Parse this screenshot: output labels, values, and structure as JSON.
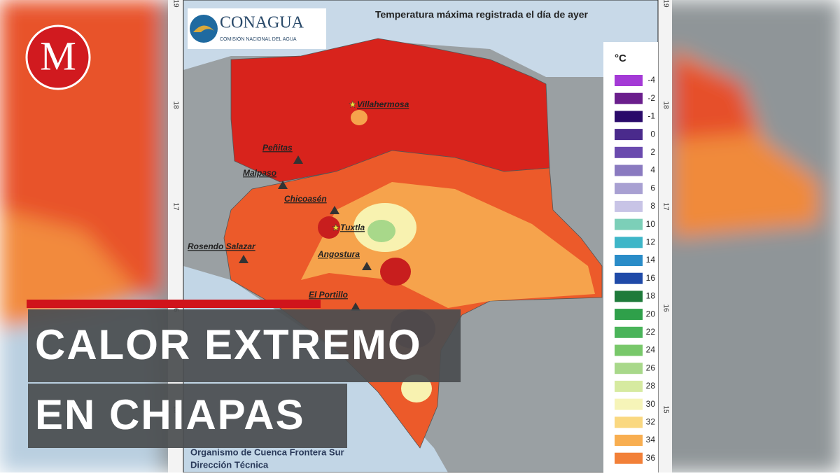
{
  "logo": {
    "letter": "M"
  },
  "map": {
    "brand": "CONAGUA",
    "brand_subtitle": "COMISIÓN NACIONAL DEL AGUA",
    "title": "Temperatura máxima registrada el día de ayer",
    "latitudes": [
      "19",
      "18",
      "17",
      "16",
      "15"
    ],
    "places": [
      "Villahermosa",
      "Peñitas",
      "Malpaso",
      "Chicoasén",
      "Tuxtla",
      "Rosendo Salazar",
      "Angostura",
      "El Portillo"
    ],
    "footer": [
      "Organismo de Cuenca Frontera Sur",
      "Dirección Técnica"
    ],
    "legend": {
      "unit": "°C",
      "items": [
        {
          "label": "-4",
          "color": "#a43ad6"
        },
        {
          "label": "-2",
          "color": "#6a1e8c"
        },
        {
          "label": "-1",
          "color": "#2a0a6a"
        },
        {
          "label": "0",
          "color": "#4a2a8c"
        },
        {
          "label": "2",
          "color": "#6a4aae"
        },
        {
          "label": "4",
          "color": "#8a7ac0"
        },
        {
          "label": "6",
          "color": "#a8a0d2"
        },
        {
          "label": "8",
          "color": "#c8c4e6"
        },
        {
          "label": "10",
          "color": "#7ccfb8"
        },
        {
          "label": "12",
          "color": "#3eb6c8"
        },
        {
          "label": "14",
          "color": "#2a8cc8"
        },
        {
          "label": "16",
          "color": "#1f4aa8"
        },
        {
          "label": "18",
          "color": "#1e7a3a"
        },
        {
          "label": "20",
          "color": "#2fa04a"
        },
        {
          "label": "22",
          "color": "#4ab45a"
        },
        {
          "label": "24",
          "color": "#78c86a"
        },
        {
          "label": "26",
          "color": "#a8d88a"
        },
        {
          "label": "28",
          "color": "#d6eaa0"
        },
        {
          "label": "30",
          "color": "#f6f4b8"
        },
        {
          "label": "32",
          "color": "#fad880"
        },
        {
          "label": "34",
          "color": "#f8ae50"
        },
        {
          "label": "36",
          "color": "#f28038"
        }
      ]
    }
  },
  "headline": [
    "CALOR EXTREMO",
    "EN CHIAPAS"
  ]
}
